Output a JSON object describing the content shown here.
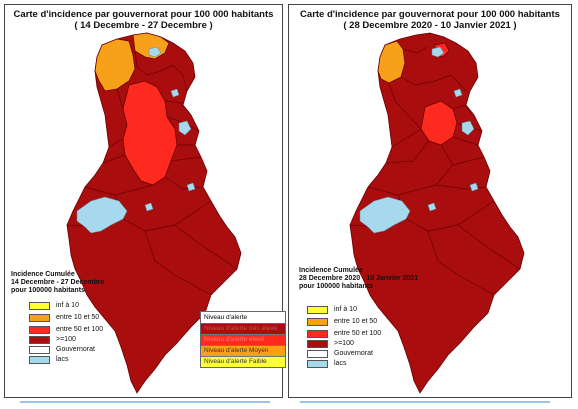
{
  "colors": {
    "very_high": "#a90d0d",
    "high": "#ff2a1f",
    "moderate": "#f7a11a",
    "low": "#ffff33",
    "lake": "#a6d8ee",
    "border": "#6b0000"
  },
  "left": {
    "title_line1": "Carte d'incidence par gouvernorat pour 100 000 habitants",
    "title_line2": "( 14 Decembre - 27 Decembre )",
    "legend_title_1": "Incidence Cumulée",
    "legend_title_2": "14 Decembre - 27 Decembre",
    "legend_title_3": "pour 100000 habitants",
    "legend_items": [
      "inf à 10",
      "entre 10 et 50",
      "entre 50 et 100",
      ">=100",
      "Gouvernorat",
      "lacs"
    ],
    "alert_header": "Niveau d'alerte",
    "alert_rows": [
      "Niveau d'alerte très élevé",
      "Niveau d'alerte élevé",
      "Niveau d'alerte Moyen",
      "Niveau d'alerte Faible"
    ]
  },
  "right": {
    "title_line1": "Carte d'incidence par gouvernorat pour 100 000 habitants",
    "title_line2": "( 28 Decembre 2020 - 10 Janvier 2021 )",
    "legend_title_1": "Incidence Cumulée",
    "legend_title_2": "28 Decembre 2020 - 10 Janvier 2021",
    "legend_title_3": "pour 100000 habitants",
    "legend_items": [
      "inf à 10",
      "entre 10 et 50",
      "entre 50 et 100",
      ">=100",
      "Gouvernorat",
      "lacs"
    ]
  }
}
